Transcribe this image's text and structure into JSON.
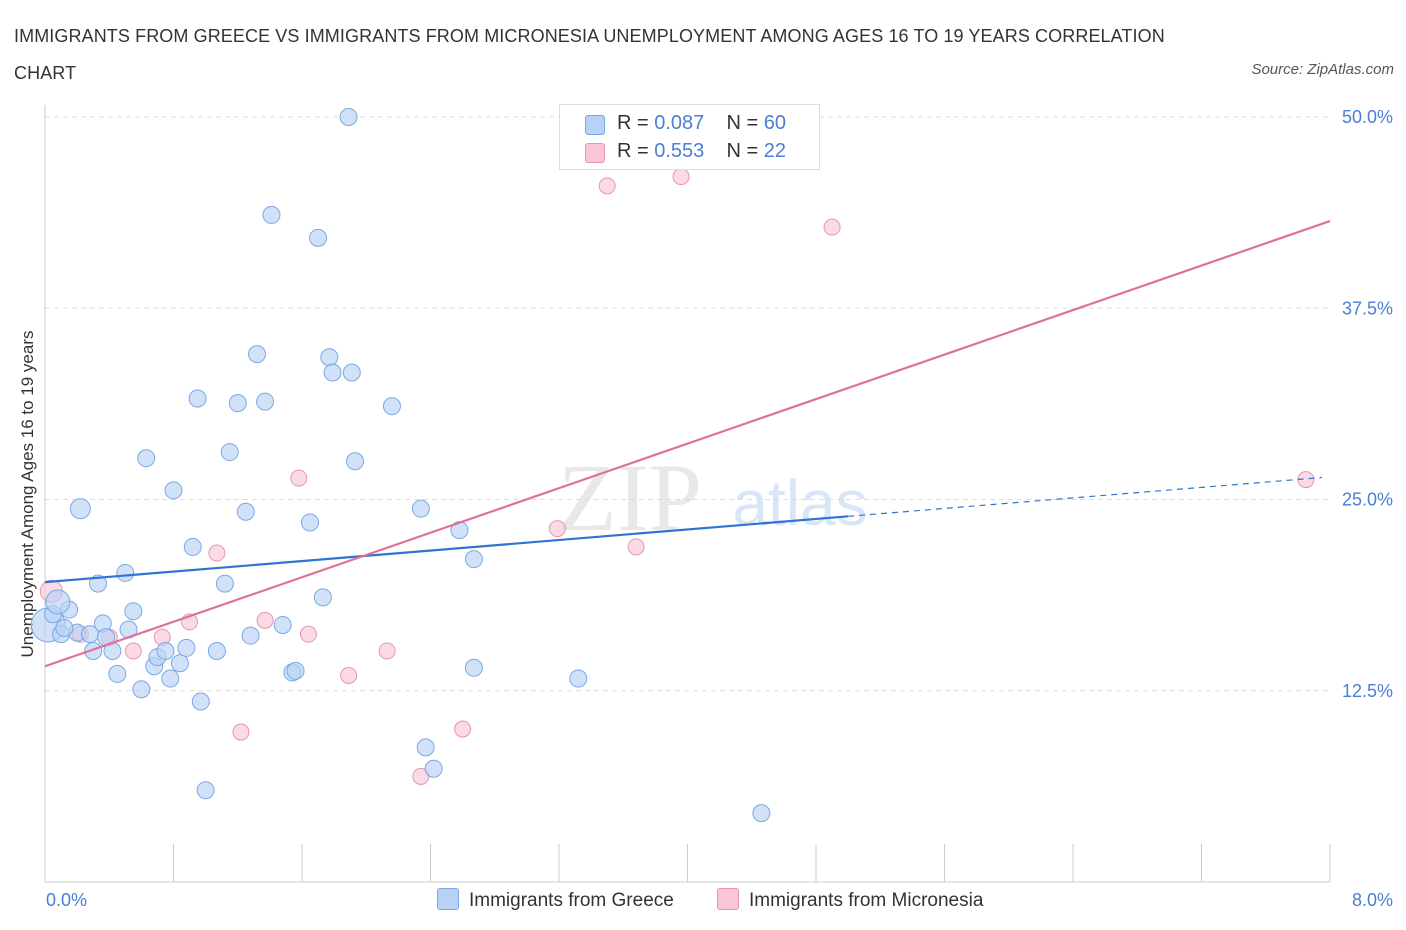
{
  "title": "IMMIGRANTS FROM GREECE VS IMMIGRANTS FROM MICRONESIA UNEMPLOYMENT AMONG AGES 16 TO 19 YEARS CORRELATION CHART",
  "source": "Source: ZipAtlas.com",
  "watermark": {
    "zip": "ZIP",
    "atlas": "atlas"
  },
  "colors": {
    "greece_fill": "#b8d2f5",
    "greece_stroke": "#7aa8e6",
    "greece_line": "#2f74d0",
    "micronesia_fill": "#f8c6d6",
    "micronesia_stroke": "#e895b0",
    "micronesia_line": "#e0709a",
    "tick_label": "#4a7fd4",
    "grid": "#dddddd"
  },
  "legend": {
    "rows": [
      {
        "r_label": "R = ",
        "r_value": "0.087",
        "n_label": "N = ",
        "n_value": "60"
      },
      {
        "r_label": "R = ",
        "r_value": "0.553",
        "n_label": "N = ",
        "n_value": "22"
      }
    ]
  },
  "chart_data": {
    "type": "scatter",
    "title": "IMMIGRANTS FROM GREECE VS IMMIGRANTS FROM MICRONESIA UNEMPLOYMENT AMONG AGES 16 TO 19 YEARS CORRELATION CHART",
    "xlabel": "",
    "ylabel": "Unemployment Among Ages 16 to 19 years",
    "xlim": [
      0,
      8
    ],
    "ylim": [
      0,
      50
    ],
    "x_tick_labels": [
      "0.0%",
      "8.0%"
    ],
    "y_ticks": [
      12.5,
      25.0,
      37.5,
      50.0
    ],
    "y_tick_labels": [
      "12.5%",
      "25.0%",
      "37.5%",
      "50.0%"
    ],
    "grid": true,
    "legend_position": "top-center",
    "series": [
      {
        "name": "Immigrants from Greece",
        "r": 0.087,
        "n": 60,
        "trend": {
          "x": [
            0.0,
            5.0
          ],
          "y": [
            19.6,
            23.9
          ]
        },
        "points": [
          [
            0.02,
            16.8
          ],
          [
            0.05,
            17.5
          ],
          [
            0.1,
            16.2
          ],
          [
            0.15,
            17.8
          ],
          [
            0.2,
            16.3
          ],
          [
            0.22,
            24.4
          ],
          [
            0.28,
            16.2
          ],
          [
            0.3,
            15.1
          ],
          [
            0.33,
            19.5
          ],
          [
            0.36,
            16.9
          ],
          [
            0.38,
            16.0
          ],
          [
            0.42,
            15.1
          ],
          [
            0.45,
            13.6
          ],
          [
            0.5,
            20.2
          ],
          [
            0.52,
            16.5
          ],
          [
            0.55,
            17.7
          ],
          [
            0.6,
            12.6
          ],
          [
            0.63,
            27.7
          ],
          [
            0.68,
            14.1
          ],
          [
            0.7,
            14.7
          ],
          [
            0.75,
            15.1
          ],
          [
            0.78,
            13.3
          ],
          [
            0.8,
            25.6
          ],
          [
            0.84,
            14.3
          ],
          [
            0.88,
            15.3
          ],
          [
            0.92,
            21.9
          ],
          [
            0.95,
            31.6
          ],
          [
            0.97,
            11.8
          ],
          [
            1.0,
            6.0
          ],
          [
            1.07,
            15.1
          ],
          [
            1.12,
            19.5
          ],
          [
            1.15,
            28.1
          ],
          [
            1.2,
            31.3
          ],
          [
            1.25,
            24.2
          ],
          [
            1.28,
            16.1
          ],
          [
            1.32,
            34.5
          ],
          [
            1.37,
            31.4
          ],
          [
            1.41,
            43.6
          ],
          [
            1.48,
            16.8
          ],
          [
            1.54,
            13.7
          ],
          [
            1.56,
            13.8
          ],
          [
            1.65,
            23.5
          ],
          [
            1.7,
            42.1
          ],
          [
            1.73,
            18.6
          ],
          [
            1.77,
            34.3
          ],
          [
            1.79,
            33.3
          ],
          [
            1.89,
            50.0
          ],
          [
            1.91,
            33.3
          ],
          [
            1.93,
            27.5
          ],
          [
            2.16,
            31.1
          ],
          [
            2.34,
            24.4
          ],
          [
            2.37,
            8.8
          ],
          [
            2.42,
            7.4
          ],
          [
            2.58,
            23.0
          ],
          [
            2.67,
            21.1
          ],
          [
            2.67,
            14.0
          ],
          [
            3.32,
            13.3
          ],
          [
            4.46,
            4.5
          ],
          [
            0.08,
            18.3
          ],
          [
            0.12,
            16.6
          ]
        ]
      },
      {
        "name": "Immigrants from Micronesia",
        "r": 0.553,
        "n": 22,
        "trend": {
          "x": [
            0.0,
            8.0
          ],
          "y": [
            14.1,
            43.2
          ]
        },
        "points": [
          [
            0.04,
            19.0
          ],
          [
            0.22,
            16.2
          ],
          [
            0.4,
            16.0
          ],
          [
            0.55,
            15.1
          ],
          [
            0.73,
            16.0
          ],
          [
            0.9,
            17.0
          ],
          [
            1.07,
            21.5
          ],
          [
            1.22,
            9.8
          ],
          [
            1.37,
            17.1
          ],
          [
            1.58,
            26.4
          ],
          [
            1.64,
            16.2
          ],
          [
            1.89,
            13.5
          ],
          [
            2.13,
            15.1
          ],
          [
            2.34,
            6.9
          ],
          [
            2.6,
            10.0
          ],
          [
            3.19,
            23.1
          ],
          [
            3.5,
            45.5
          ],
          [
            3.68,
            21.9
          ],
          [
            3.8,
            47.3
          ],
          [
            3.96,
            46.1
          ],
          [
            4.9,
            42.8
          ],
          [
            7.85,
            26.3
          ]
        ]
      }
    ]
  },
  "bottom_legend": [
    "Immigrants from Greece",
    "Immigrants from Micronesia"
  ]
}
